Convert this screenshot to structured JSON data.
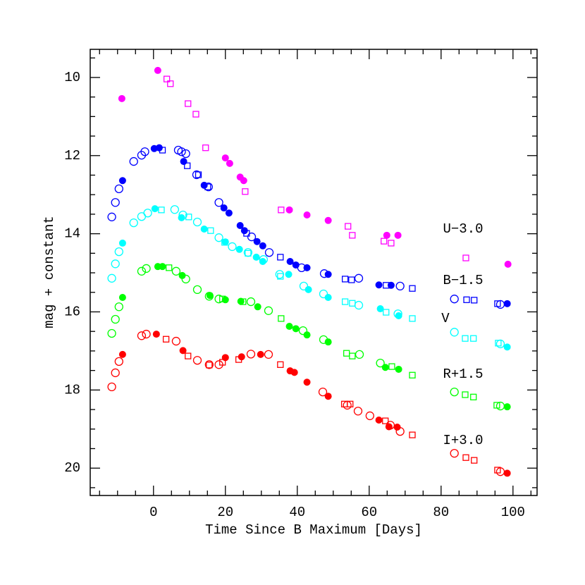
{
  "chart_data": {
    "type": "scatter",
    "x_label": "Time Since B Maximum [Days]",
    "y_label": "mag + constant",
    "xlim": [
      -17.6,
      106.7
    ],
    "ylim": [
      20.7,
      9.28
    ],
    "xticks": [
      0,
      20,
      40,
      60,
      80,
      100
    ],
    "xminorticks": [
      -15,
      -10,
      -5,
      5,
      10,
      15,
      25,
      30,
      35,
      45,
      50,
      55,
      65,
      70,
      75,
      85,
      90,
      95,
      105
    ],
    "yticks": [
      10,
      12,
      14,
      16,
      18,
      20
    ],
    "yminorticks": [
      9.5,
      10.5,
      11,
      11.5,
      12.5,
      13,
      13.5,
      14.5,
      15,
      15.5,
      16.5,
      17,
      17.5,
      18.5,
      19,
      19.5,
      20.5
    ],
    "series": [
      {
        "name": "U−3.0",
        "color": "#ff00ff",
        "filled": {
          "x": [
            -8.8,
            1.2,
            20,
            21.2,
            24.1,
            25.1,
            37.8,
            42.7,
            48.6,
            64.9,
            68,
            98.6
          ],
          "y": [
            10.54,
            9.82,
            12.06,
            12.2,
            12.55,
            12.64,
            13.39,
            13.52,
            13.66,
            14.04,
            14.04,
            14.78
          ]
        },
        "open": {
          "x": [],
          "y": []
        },
        "square": {
          "x": [
            3.7,
            4.7,
            9.6,
            11.8,
            14.5,
            25.5,
            35.5,
            54.1,
            55.3,
            64.1,
            66.1,
            86.9
          ],
          "y": [
            10.04,
            10.16,
            10.67,
            10.94,
            11.8,
            12.92,
            13.39,
            13.81,
            14.04,
            14.19,
            14.24,
            14.62
          ]
        }
      },
      {
        "name": "B−1.5",
        "color": "#0000ff",
        "filled": {
          "x": [
            -8.6,
            0.2,
            1.6,
            8.4,
            14.1,
            19.6,
            21,
            24.1,
            25.3,
            28.8,
            30.4,
            38,
            39.6,
            42.7,
            48.6,
            62.7,
            66.1,
            98.4
          ],
          "y": [
            12.64,
            11.82,
            11.8,
            12.15,
            12.76,
            13.34,
            13.47,
            13.79,
            13.92,
            14.2,
            14.31,
            14.71,
            14.8,
            14.87,
            15.04,
            15.31,
            15.32,
            15.79
          ]
        },
        "open": {
          "x": [
            -11.6,
            -10.6,
            -9.6,
            -5.5,
            -3.3,
            -2.4,
            6.9,
            7.8,
            9,
            12,
            15.3,
            18.2,
            27.3,
            32.2,
            41.2,
            47.5,
            57.1,
            68.6,
            83.7,
            96.5
          ],
          "y": [
            13.57,
            13.2,
            12.85,
            12.15,
            11.99,
            11.9,
            11.86,
            11.9,
            11.95,
            12.49,
            12.8,
            13.2,
            14.08,
            14.48,
            14.87,
            15.02,
            15.14,
            15.34,
            15.67,
            15.81
          ]
        },
        "square": {
          "x": [
            2.5,
            9.4,
            12.5,
            15.1,
            25.9,
            35.3,
            53.3,
            55.1,
            64.7,
            72,
            87.1,
            89.2,
            95.7
          ],
          "y": [
            11.86,
            12.26,
            12.49,
            12.8,
            13.99,
            14.6,
            15.16,
            15.18,
            15.32,
            15.4,
            15.69,
            15.7,
            15.79
          ]
        }
      },
      {
        "name": "V",
        "color": "#00ffff",
        "filled": {
          "x": [
            -8.6,
            0.4,
            7.8,
            14.1,
            20,
            23.9,
            28.6,
            30.4,
            37.6,
            43.1,
            48.6,
            63.1,
            68.2,
            98.4
          ],
          "y": [
            14.24,
            13.36,
            13.59,
            13.88,
            14.21,
            14.4,
            14.6,
            14.71,
            15.04,
            15.43,
            15.63,
            15.92,
            16.1,
            16.9
          ]
        },
        "open": {
          "x": [
            -11.6,
            -10.6,
            -9.6,
            -5.5,
            -3.3,
            -1.6,
            5.9,
            8.2,
            12.2,
            18.2,
            21.9,
            26.3,
            30.6,
            35.1,
            41.8,
            47.3,
            57.1,
            68,
            83.7,
            96.5
          ],
          "y": [
            15.14,
            14.77,
            14.46,
            13.72,
            13.56,
            13.47,
            13.38,
            13.52,
            13.7,
            14.1,
            14.33,
            14.48,
            14.66,
            15.04,
            15.34,
            15.54,
            15.83,
            16.05,
            16.52,
            16.82
          ]
        },
        "square": {
          "x": [
            2.2,
            9.8,
            15.9,
            19.8,
            26.3,
            35.3,
            53.3,
            55.3,
            64.7,
            72,
            86.7,
            89,
            95.9
          ],
          "y": [
            13.39,
            13.57,
            13.92,
            14.22,
            14.5,
            15.09,
            15.74,
            15.78,
            16.01,
            16.17,
            16.68,
            16.68,
            16.8
          ]
        }
      },
      {
        "name": "R+1.5",
        "color": "#00ff00",
        "filled": {
          "x": [
            -8.6,
            1.2,
            2.5,
            8,
            15.7,
            20,
            24.3,
            29,
            37.8,
            39.6,
            42.7,
            48.6,
            64.5,
            68.2,
            98.4
          ],
          "y": [
            15.63,
            14.84,
            14.84,
            15.07,
            15.58,
            15.69,
            15.73,
            15.87,
            16.37,
            16.43,
            16.59,
            16.77,
            17.42,
            17.47,
            18.43
          ]
        },
        "open": {
          "x": [
            -11.6,
            -10.6,
            -9.6,
            -3.3,
            -2,
            6.3,
            9,
            12.2,
            15.5,
            18.2,
            27.1,
            32,
            41.6,
            47.3,
            57.3,
            63.1,
            83.7,
            96.5
          ],
          "y": [
            16.55,
            16.19,
            15.87,
            14.96,
            14.89,
            14.96,
            15.16,
            15.43,
            15.6,
            15.67,
            15.74,
            15.97,
            16.48,
            16.71,
            17.09,
            17.31,
            18.05,
            18.41
          ]
        },
        "square": {
          "x": [
            4.3,
            19.2,
            24.9,
            35.5,
            53.7,
            55.3,
            66.3,
            72,
            86.7,
            89,
            95.5
          ],
          "y": [
            14.87,
            15.67,
            15.74,
            16.17,
            17.06,
            17.13,
            17.4,
            17.62,
            18.12,
            18.18,
            18.39
          ]
        }
      },
      {
        "name": "I+3.0",
        "color": "#ff0000",
        "filled": {
          "x": [
            -8.6,
            0.8,
            8.2,
            20,
            24.5,
            29.8,
            38,
            39.2,
            42.7,
            48.6,
            62.7,
            65.5,
            67.8,
            98.4
          ],
          "y": [
            17.09,
            16.57,
            16.99,
            17.17,
            17.15,
            17.09,
            17.51,
            17.55,
            17.8,
            18.16,
            18.77,
            18.94,
            18.95,
            20.13
          ]
        },
        "open": {
          "x": [
            -11.6,
            -10.6,
            -9.6,
            -3.3,
            -2,
            6.3,
            12.2,
            15.5,
            18.2,
            27.1,
            32,
            47.1,
            53.9,
            56.9,
            60.2,
            65.9,
            68.6,
            83.7,
            96.5
          ],
          "y": [
            17.92,
            17.56,
            17.27,
            16.61,
            16.57,
            16.75,
            17.24,
            17.35,
            17.35,
            17.08,
            17.09,
            18.05,
            18.39,
            18.54,
            18.66,
            18.9,
            19.06,
            19.62,
            20.09
          ]
        },
        "square": {
          "x": [
            3.5,
            9.6,
            15.5,
            19.2,
            23.7,
            35.3,
            53.1,
            54.7,
            64.5,
            72,
            86.9,
            89.2,
            95.7
          ],
          "y": [
            16.7,
            17.13,
            17.36,
            17.29,
            17.22,
            17.35,
            18.36,
            18.36,
            18.79,
            19.15,
            19.73,
            19.8,
            20.05
          ]
        }
      }
    ]
  }
}
